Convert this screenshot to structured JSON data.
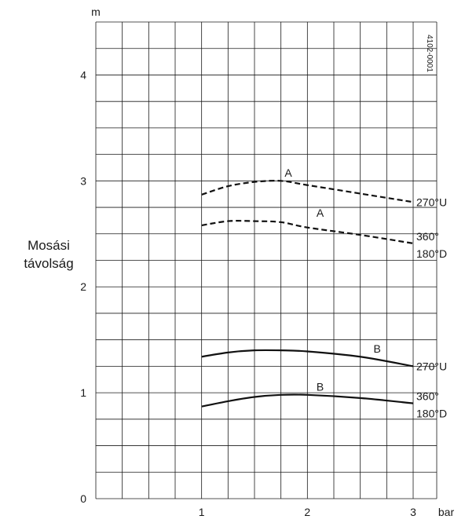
{
  "chart_data": {
    "type": "line",
    "title": "",
    "xlabel": "",
    "x_unit": "bar",
    "ylabel": [
      "Mosási",
      "távolság"
    ],
    "y_unit": "m",
    "xlim": [
      0,
      3
    ],
    "ylim": [
      0,
      4.5
    ],
    "x_ticks": [
      "1",
      "2",
      "3"
    ],
    "y_ticks": [
      "0",
      "1",
      "2",
      "3",
      "4"
    ],
    "x_tick_values": [
      1,
      2,
      3
    ],
    "y_tick_values": [
      0,
      1,
      2,
      3,
      4
    ],
    "grid": true,
    "figure_code": "4102-0001",
    "series": [
      {
        "curve_label": "A",
        "end_label": [
          "270°U"
        ],
        "style": "dashed",
        "x": [
          1.0,
          1.25,
          1.5,
          1.75,
          2.0,
          2.5,
          3.0
        ],
        "values": [
          2.87,
          2.95,
          2.99,
          3.0,
          2.96,
          2.88,
          2.8
        ]
      },
      {
        "curve_label": "A",
        "end_label": [
          "360°",
          "180°D"
        ],
        "style": "dashed",
        "x": [
          1.0,
          1.25,
          1.5,
          1.75,
          2.0,
          2.5,
          3.0
        ],
        "values": [
          2.58,
          2.62,
          2.62,
          2.61,
          2.56,
          2.49,
          2.41
        ]
      },
      {
        "curve_label": "B",
        "end_label": [
          "270°U"
        ],
        "style": "solid",
        "x": [
          1.0,
          1.25,
          1.5,
          1.75,
          2.0,
          2.5,
          3.0
        ],
        "values": [
          1.34,
          1.38,
          1.4,
          1.4,
          1.39,
          1.34,
          1.25
        ]
      },
      {
        "curve_label": "B",
        "end_label": [
          "360°",
          "180°D"
        ],
        "style": "solid",
        "x": [
          1.0,
          1.25,
          1.5,
          1.75,
          2.0,
          2.5,
          3.0
        ],
        "values": [
          0.87,
          0.92,
          0.96,
          0.98,
          0.98,
          0.95,
          0.9
        ]
      }
    ]
  }
}
